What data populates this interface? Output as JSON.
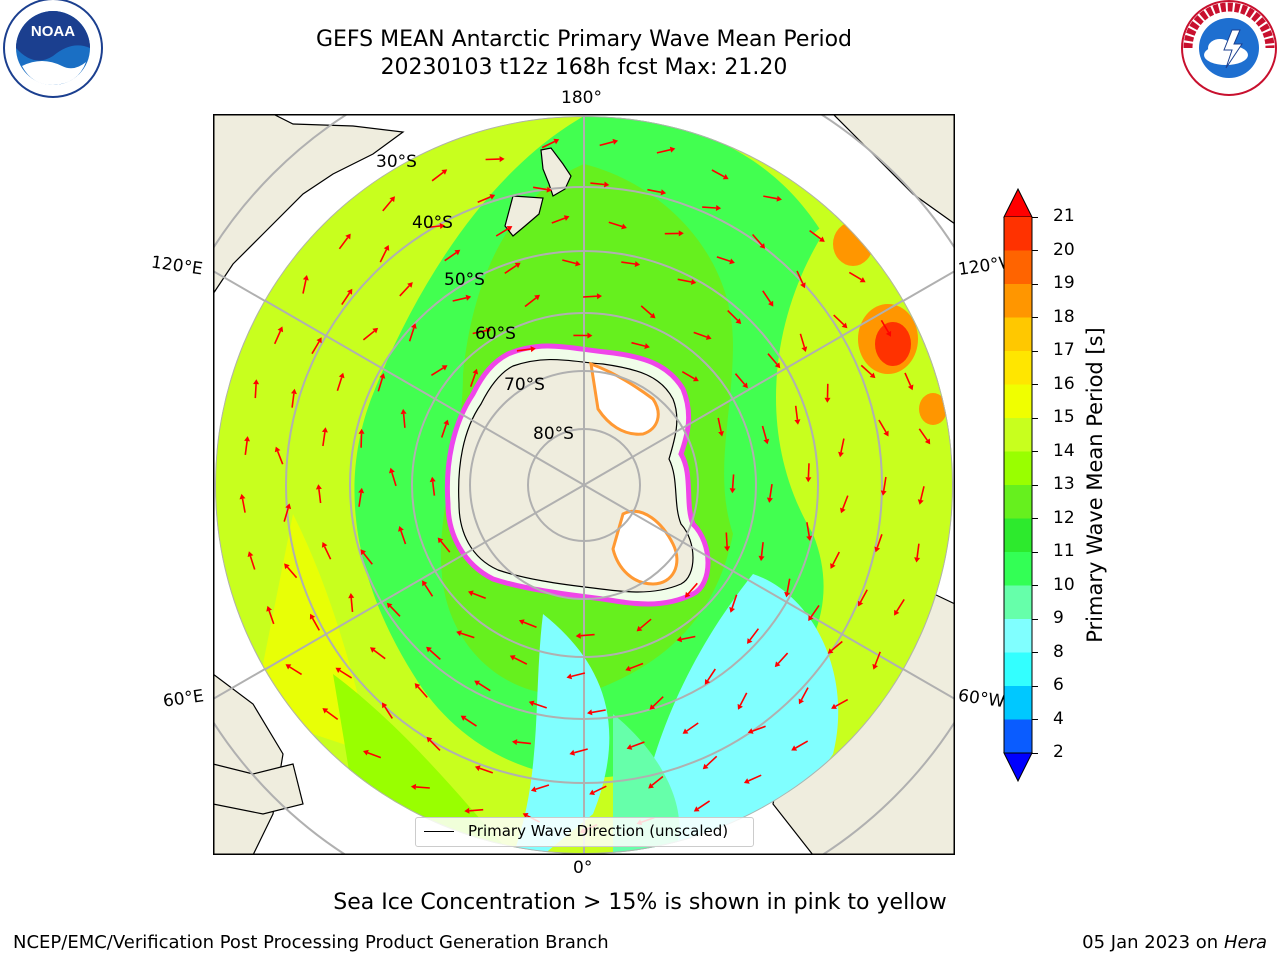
{
  "title": {
    "line1": "GEFS MEAN Antarctic Primary Wave Mean Period",
    "line2": "20230103 t12z 168h fcst   Max: 21.20"
  },
  "logos": {
    "left": "noaa-logo",
    "right": "national-weather-service-logo"
  },
  "map": {
    "projection": "south-polar-stereographic",
    "longitude_labels": [
      "180°",
      "120°E",
      "120°W",
      "60°E",
      "60°W",
      "0°"
    ],
    "latitude_labels": [
      "30°S",
      "40°S",
      "50°S",
      "60°S",
      "70°S",
      "80°S"
    ],
    "legend_label": "Primary Wave Direction (unscaled)",
    "arrow_color": "#ff0000",
    "land_color": "#efedde",
    "ice_colors": [
      "#ff33ff",
      "#ff9933",
      "#ffff66",
      "#ffffff"
    ]
  },
  "colorbar": {
    "label": "Primary Wave Mean Period [s]",
    "ticks": [
      "2",
      "4",
      "6",
      "8",
      "9",
      "10",
      "11",
      "12",
      "13",
      "14",
      "15",
      "16",
      "17",
      "18",
      "19",
      "20",
      "21"
    ],
    "colors": [
      "#0a5cff",
      "#00c8ff",
      "#33ffff",
      "#80ffff",
      "#66ffaa",
      "#33ff55",
      "#2dea2d",
      "#66f01e",
      "#99ff00",
      "#c8ff1e",
      "#f0ff00",
      "#ffe600",
      "#ffc800",
      "#ff9600",
      "#ff6400",
      "#ff3200"
    ],
    "under_color": "#0000ff",
    "over_color": "#ff0000"
  },
  "caption": "Sea Ice Concentration > 15% is shown in pink to yellow",
  "footer": {
    "left": "NCEP/EMC/Verification Post Processing Product Generation Branch",
    "right_date": "05 Jan 2023 on ",
    "right_host": "Hera"
  }
}
